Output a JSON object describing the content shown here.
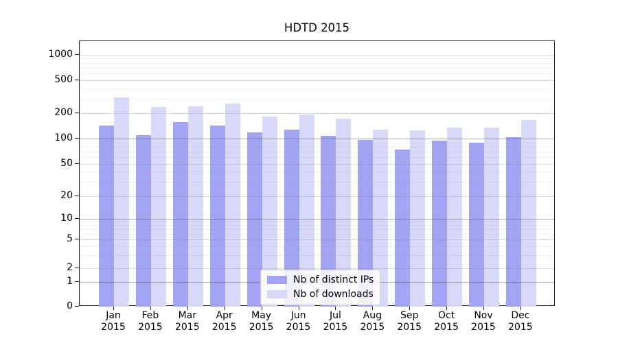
{
  "chart_data": {
    "type": "bar",
    "title": "HDTD 2015",
    "scale": "symlog",
    "xlabel": "",
    "ylabel": "",
    "grid": true,
    "legend_position": "inside lower-center",
    "categories": [
      "Jan",
      "Feb",
      "Mar",
      "Apr",
      "May",
      "Jun",
      "Jul",
      "Aug",
      "Sep",
      "Oct",
      "Nov",
      "Dec"
    ],
    "category_year": "2015",
    "yticks": [
      0,
      1,
      2,
      5,
      10,
      20,
      50,
      100,
      200,
      500,
      1000
    ],
    "ylim": [
      0,
      1400
    ],
    "series": [
      {
        "name": "Nb of distinct IPs",
        "color": "#a3a3f3",
        "values": [
          143,
          110,
          158,
          144,
          119,
          127,
          108,
          97,
          74,
          94,
          89,
          104
        ]
      },
      {
        "name": "Nb of downloads",
        "color": "#d8d8f8",
        "values": [
          310,
          240,
          242,
          265,
          183,
          193,
          173,
          127,
          125,
          135,
          136,
          168
        ]
      }
    ]
  },
  "style": {
    "major_grid_values": [
      1,
      10,
      100
    ],
    "light_grid_values": [
      2,
      5,
      20,
      50,
      200,
      500,
      1000
    ],
    "minor_grid_values": [
      3,
      4,
      6,
      7,
      8,
      9,
      30,
      40,
      60,
      70,
      80,
      90,
      300,
      400,
      600,
      700,
      800,
      900
    ]
  }
}
